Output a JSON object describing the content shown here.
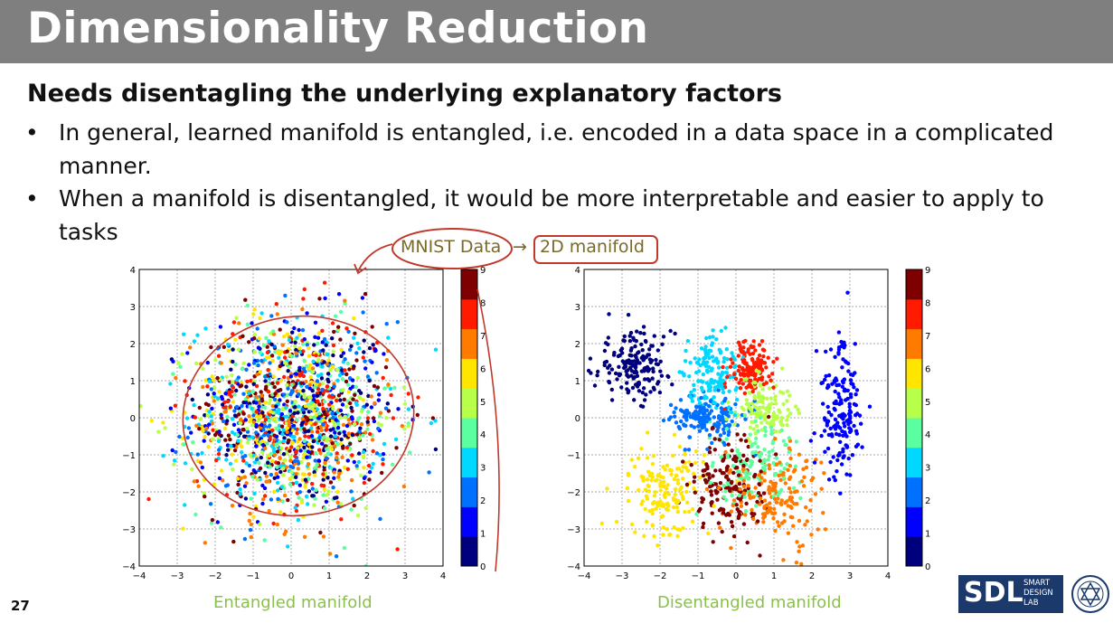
{
  "slide": {
    "title": "Dimensionality Reduction",
    "subtitle": "Needs disentagling the underlying explanatory factors",
    "bullets": [
      "In general, learned manifold is entangled, i.e. encoded in a data space in a complicated manner.",
      "When a manifold is disentangled, it would be more interpretable and easier to apply to tasks"
    ],
    "bullet_glyph": "•",
    "annotation_left": "MNIST Data",
    "annotation_arrow": "→",
    "annotation_right": "2D manifold",
    "annotation_color": "#c0392b",
    "caption_left": "Entangled manifold",
    "caption_right": "Disentangled manifold",
    "caption_color": "#8cc04c",
    "page_number": "27",
    "logo_mark": "SDL",
    "logo_words": [
      "SMART",
      "DESIGN",
      "LAB"
    ]
  },
  "chart_data": [
    {
      "type": "scatter",
      "xlim": [
        -4,
        4
      ],
      "ylim": [
        -4,
        4
      ],
      "xticks": [
        "−4",
        "−3",
        "−2",
        "−1",
        "0",
        "1",
        "2",
        "3",
        "4"
      ],
      "yticks": [
        "4",
        "3",
        "2",
        "1",
        "0",
        "−1",
        "−2",
        "−3",
        "−4"
      ],
      "grid": true,
      "colorbar": {
        "min": 0,
        "max": 9,
        "ticks": [
          "9",
          "8",
          "7",
          "6",
          "5",
          "4",
          "3",
          "2",
          "1",
          "0"
        ]
      },
      "colormap": [
        "#00007f",
        "#0000ff",
        "#0070ff",
        "#00d8ff",
        "#5cffa0",
        "#b8ff4a",
        "#ffe500",
        "#ff7b00",
        "#ff1a00",
        "#7f0000"
      ],
      "clusters": [
        {
          "label": 0,
          "center": [
            0.2,
            0.1
          ],
          "spread": [
            1.3,
            1.3
          ],
          "points": 170
        },
        {
          "label": 1,
          "center": [
            0.1,
            0.2
          ],
          "spread": [
            1.3,
            1.3
          ],
          "points": 170
        },
        {
          "label": 2,
          "center": [
            0.0,
            0.0
          ],
          "spread": [
            1.3,
            1.3
          ],
          "points": 170
        },
        {
          "label": 3,
          "center": [
            -0.1,
            0.1
          ],
          "spread": [
            1.3,
            1.3
          ],
          "points": 170
        },
        {
          "label": 4,
          "center": [
            0.2,
            -0.1
          ],
          "spread": [
            1.3,
            1.3
          ],
          "points": 170
        },
        {
          "label": 5,
          "center": [
            0.1,
            0.0
          ],
          "spread": [
            1.3,
            1.3
          ],
          "points": 170
        },
        {
          "label": 6,
          "center": [
            -0.2,
            0.1
          ],
          "spread": [
            1.3,
            1.3
          ],
          "points": 170
        },
        {
          "label": 7,
          "center": [
            0.0,
            -0.2
          ],
          "spread": [
            1.3,
            1.3
          ],
          "points": 170
        },
        {
          "label": 8,
          "center": [
            0.1,
            0.2
          ],
          "spread": [
            1.3,
            1.3
          ],
          "points": 170
        },
        {
          "label": 9,
          "center": [
            0.0,
            0.1
          ],
          "spread": [
            1.3,
            1.3
          ],
          "points": 170
        }
      ]
    },
    {
      "type": "scatter",
      "xlim": [
        -4,
        4
      ],
      "ylim": [
        -4,
        4
      ],
      "xticks": [
        "−4",
        "−3",
        "−2",
        "−1",
        "0",
        "1",
        "2",
        "3",
        "4"
      ],
      "yticks": [
        "4",
        "3",
        "2",
        "1",
        "0",
        "−1",
        "−2",
        "−3",
        "−4"
      ],
      "grid": true,
      "colorbar": {
        "min": 0,
        "max": 9,
        "ticks": [
          "9",
          "8",
          "7",
          "6",
          "5",
          "4",
          "3",
          "2",
          "1",
          "0"
        ]
      },
      "colormap": [
        "#00007f",
        "#0000ff",
        "#0070ff",
        "#00d8ff",
        "#5cffa0",
        "#b8ff4a",
        "#ffe500",
        "#ff7b00",
        "#ff1a00",
        "#7f0000"
      ],
      "clusters": [
        {
          "label": 0,
          "center": [
            -2.7,
            1.4
          ],
          "spread": [
            0.5,
            0.45
          ],
          "points": 170
        },
        {
          "label": 1,
          "center": [
            2.75,
            0.2
          ],
          "spread": [
            0.3,
            0.9
          ],
          "points": 170
        },
        {
          "label": 2,
          "center": [
            -0.7,
            0.0
          ],
          "spread": [
            0.45,
            0.3
          ],
          "points": 160
        },
        {
          "label": 3,
          "center": [
            -0.6,
            1.2
          ],
          "spread": [
            0.35,
            0.55
          ],
          "points": 150
        },
        {
          "label": 4,
          "center": [
            0.5,
            -1.3
          ],
          "spread": [
            0.6,
            0.6
          ],
          "points": 130
        },
        {
          "label": 5,
          "center": [
            0.7,
            0.3
          ],
          "spread": [
            0.4,
            0.4
          ],
          "points": 130
        },
        {
          "label": 6,
          "center": [
            -1.85,
            -2.0
          ],
          "spread": [
            0.5,
            0.6
          ],
          "points": 160
        },
        {
          "label": 7,
          "center": [
            1.0,
            -2.0
          ],
          "spread": [
            0.6,
            0.6
          ],
          "points": 170
        },
        {
          "label": 8,
          "center": [
            0.3,
            1.4
          ],
          "spread": [
            0.3,
            0.4
          ],
          "points": 140
        },
        {
          "label": 9,
          "center": [
            -0.2,
            -1.8
          ],
          "spread": [
            0.5,
            0.7
          ],
          "points": 160
        }
      ]
    }
  ]
}
